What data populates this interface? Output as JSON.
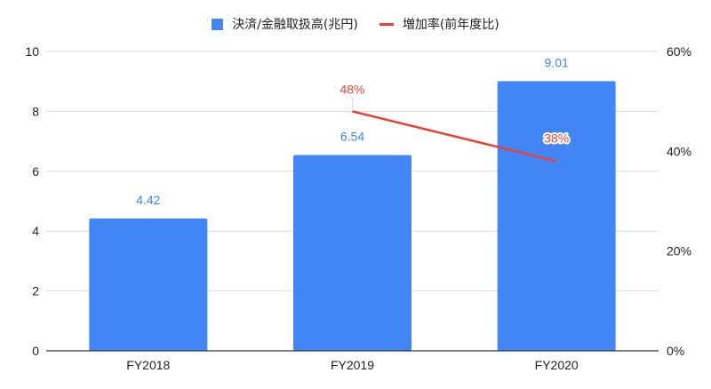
{
  "chart_data": {
    "type": "bar",
    "title": "",
    "categories": [
      "FY2018",
      "FY2019",
      "FY2020"
    ],
    "series": [
      {
        "name": "決済/金融取扱高(兆円)",
        "type": "bar",
        "axis": "left",
        "color": "#4285F4",
        "values": [
          4.42,
          6.54,
          9.01
        ],
        "labels": [
          "4.42",
          "6.54",
          "9.01"
        ]
      },
      {
        "name": "増加率(前年度比)",
        "type": "line",
        "axis": "right",
        "color": "#EA4335",
        "values": [
          null,
          0.48,
          0.38
        ],
        "labels": [
          "",
          "48%",
          "38%"
        ]
      }
    ],
    "left_axis": {
      "ticks": [
        "0",
        "2",
        "4",
        "6",
        "8",
        "10"
      ],
      "ylim": [
        0,
        10
      ]
    },
    "right_axis": {
      "ticks": [
        "0%",
        "20%",
        "40%",
        "60%"
      ],
      "ylim": [
        0,
        0.6
      ]
    },
    "xlabel": "",
    "ylabel": "",
    "grid": true,
    "legend_position": "top"
  },
  "legend": {
    "bar_label": "決済/金融取扱高(兆円)",
    "line_label": "増加率(前年度比)"
  },
  "colors": {
    "bar": "#4285F4",
    "line": "#EA4335",
    "grid": "#d9d9d9",
    "axis": "#333333",
    "text": "#222222"
  }
}
